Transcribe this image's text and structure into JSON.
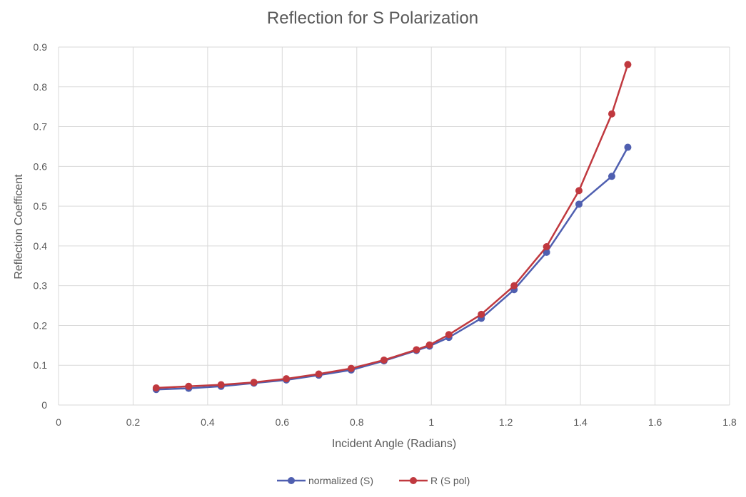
{
  "chart_data": {
    "type": "scatter",
    "title": "Reflection for S Polarization",
    "xlabel": "Incident Angle (Radians)",
    "ylabel": "Reflection Coefficent",
    "xlim": [
      0,
      1.8
    ],
    "ylim": [
      0,
      0.9
    ],
    "xticks": [
      "0",
      "0.2",
      "0.4",
      "0.6",
      "0.8",
      "1",
      "1.2",
      "1.4",
      "1.6",
      "1.8"
    ],
    "yticks": [
      "0",
      "0.1",
      "0.2",
      "0.3",
      "0.4",
      "0.5",
      "0.6",
      "0.7",
      "0.8",
      "0.9"
    ],
    "grid": true,
    "legend_position": "bottom",
    "series": [
      {
        "name": "normalized (S)",
        "color": "#4f5fb0",
        "x": [
          0.262,
          0.349,
          0.436,
          0.524,
          0.611,
          0.698,
          0.785,
          0.873,
          0.96,
          0.995,
          1.047,
          1.134,
          1.222,
          1.309,
          1.396,
          1.484,
          1.527
        ],
        "y": [
          0.039,
          0.042,
          0.047,
          0.055,
          0.063,
          0.075,
          0.088,
          0.111,
          0.137,
          0.148,
          0.17,
          0.218,
          0.29,
          0.384,
          0.505,
          0.575,
          0.648
        ]
      },
      {
        "name": "R (S pol)",
        "color": "#c0393f",
        "x": [
          0.262,
          0.349,
          0.436,
          0.524,
          0.611,
          0.698,
          0.785,
          0.873,
          0.96,
          0.995,
          1.047,
          1.134,
          1.222,
          1.309,
          1.396,
          1.484,
          1.527
        ],
        "y": [
          0.043,
          0.047,
          0.051,
          0.057,
          0.066,
          0.078,
          0.092,
          0.113,
          0.139,
          0.151,
          0.177,
          0.228,
          0.3,
          0.398,
          0.539,
          0.732,
          0.856
        ]
      }
    ]
  }
}
